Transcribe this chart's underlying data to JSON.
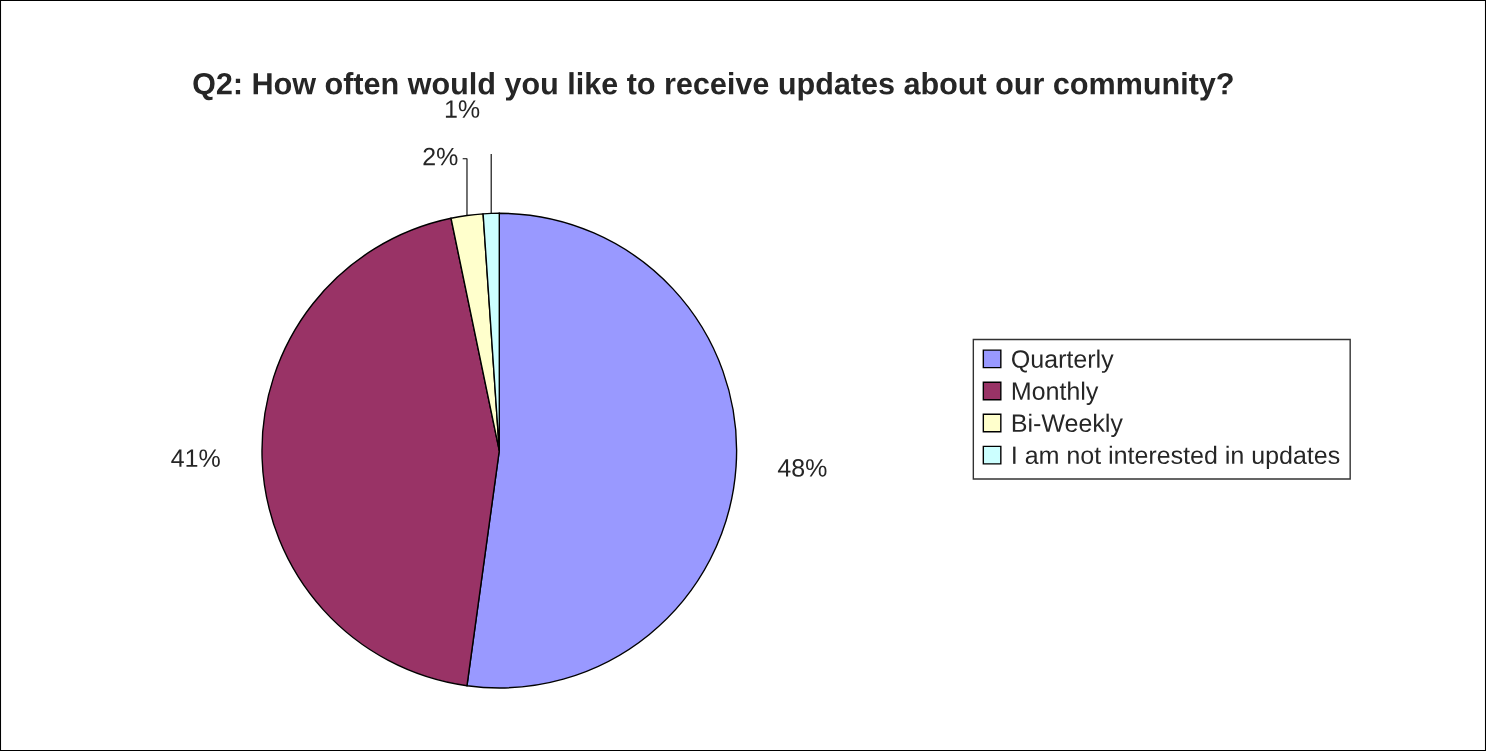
{
  "chart_data": {
    "type": "pie",
    "title": "Q2: How often would you like to receive updates about our community?",
    "categories": [
      "Quarterly",
      "Monthly",
      "Bi-Weekly",
      "I am not interested in updates"
    ],
    "values": [
      48,
      41,
      2,
      1
    ],
    "colors": [
      "#9999ff",
      "#993366",
      "#ffffcc",
      "#ccffff"
    ],
    "value_labels": [
      "48%",
      "41%",
      "2%",
      "1%"
    ],
    "legend": "right"
  }
}
